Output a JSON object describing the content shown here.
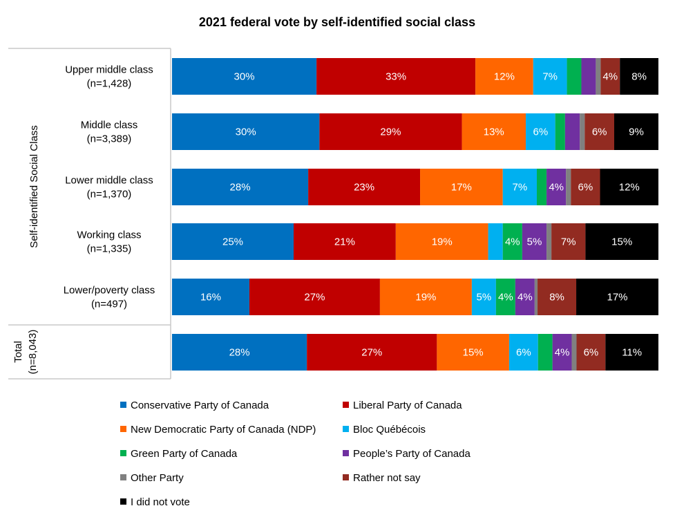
{
  "chart_data": {
    "type": "bar",
    "orientation": "horizontal",
    "stacked": true,
    "normalized": true,
    "title": "2021 federal vote by self-identified social class",
    "group_labels": [
      "Self-identified Social Class",
      "Total (n=8,043)"
    ],
    "categories": [
      "Upper middle class (n=1,428)",
      "Middle class (n=3,389)",
      "Lower middle class (n=1,370)",
      "Working class (n=1,335)",
      "Lower/poverty class (n=497)",
      ""
    ],
    "category_lines": [
      [
        "Upper middle class",
        "(n=1,428)"
      ],
      [
        "Middle class",
        "(n=3,389)"
      ],
      [
        "Lower middle class",
        "(n=1,370)"
      ],
      [
        "Working class",
        "(n=1,335)"
      ],
      [
        "Lower/poverty class",
        "(n=497)"
      ],
      []
    ],
    "series": [
      {
        "name": "Conservative Party of Canada",
        "color": "#0070C0",
        "values": [
          30,
          30,
          28,
          25,
          16,
          28
        ]
      },
      {
        "name": "Liberal Party of Canada",
        "color": "#C00000",
        "values": [
          33,
          29,
          23,
          21,
          27,
          27
        ]
      },
      {
        "name": "New Democratic Party of Canada (NDP)",
        "color": "#FF6600",
        "values": [
          12,
          13,
          17,
          19,
          19,
          15
        ]
      },
      {
        "name": "Bloc Québécois",
        "color": "#00B0F0",
        "values": [
          7,
          6,
          7,
          3,
          5,
          6
        ]
      },
      {
        "name": "Green Party of Canada",
        "color": "#00B050",
        "values": [
          3,
          2,
          2,
          4,
          4,
          3
        ]
      },
      {
        "name": "People’s Party of Canada",
        "color": "#7030A0",
        "values": [
          3,
          3,
          4,
          5,
          4,
          4
        ]
      },
      {
        "name": "Other Party",
        "color": "#808080",
        "values": [
          1,
          1,
          1,
          1,
          0.6,
          1
        ]
      },
      {
        "name": "Rather not say",
        "color": "#922B21",
        "values": [
          4,
          6,
          6,
          7,
          8,
          6
        ]
      },
      {
        "name": "I did not vote",
        "color": "#000000",
        "values": [
          8,
          9,
          12,
          15,
          17,
          11
        ]
      }
    ],
    "data_labels": [
      [
        "30%",
        "33%",
        "12%",
        "7%",
        "",
        "",
        "",
        "4%",
        "8%"
      ],
      [
        "30%",
        "29%",
        "13%",
        "6%",
        "",
        "",
        "",
        "6%",
        "9%"
      ],
      [
        "28%",
        "23%",
        "17%",
        "7%",
        "",
        "4%",
        "",
        "6%",
        "12%"
      ],
      [
        "25%",
        "21%",
        "19%",
        "",
        "4%",
        "5%",
        "",
        "7%",
        "15%"
      ],
      [
        "16%",
        "27%",
        "19%",
        "5%",
        "4%",
        "4%",
        "",
        "8%",
        "17%"
      ],
      [
        "28%",
        "27%",
        "15%",
        "6%",
        "",
        "4%",
        "",
        "6%",
        "11%"
      ]
    ],
    "legend": "bottom",
    "grid": false
  }
}
